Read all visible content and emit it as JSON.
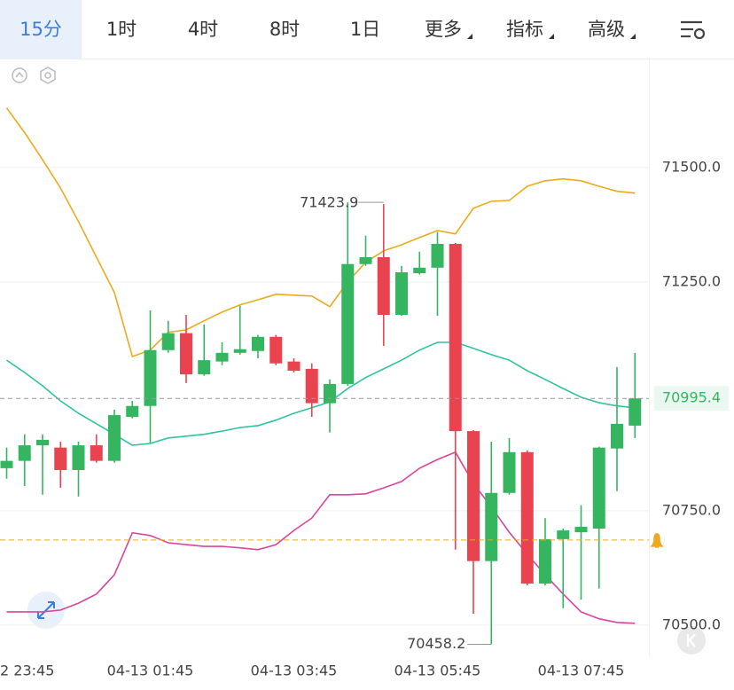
{
  "tabs": [
    "15分",
    "1时",
    "4时",
    "8时",
    "1日",
    "更多",
    "指标",
    "高级"
  ],
  "selected_tab": 0,
  "chart_data": {
    "type": "candlestick",
    "categories": [
      "2 23:45",
      null,
      null,
      null,
      null,
      null,
      null,
      null,
      "04-13 01:45",
      null,
      null,
      null,
      null,
      null,
      null,
      null,
      "04-13 03:45",
      null,
      null,
      null,
      null,
      null,
      null,
      null,
      "04-13 05:45",
      null,
      null,
      null,
      null,
      null,
      null,
      null,
      "04-13 07:45",
      null,
      null,
      null
    ],
    "open": [
      70843,
      70859,
      70893,
      70888,
      70839,
      70893,
      70859,
      70955,
      70979,
      71101,
      71138,
      71048,
      71076,
      71095,
      71099,
      71130,
      71076,
      71060,
      70985,
      71027,
      71289,
      71304,
      71178,
      71269,
      71281,
      71333,
      70924,
      70640,
      70789,
      70878,
      70591,
      70688,
      70703,
      70711,
      70886,
      70936
    ],
    "high": [
      70888,
      70917,
      70917,
      70901,
      70901,
      70917,
      70971,
      70990,
      71188,
      71165,
      71178,
      71157,
      71118,
      71198,
      71134,
      71134,
      71083,
      71072,
      71037,
      71423.9,
      71351,
      71420,
      71285,
      71316,
      71359,
      71335,
      70926,
      70901,
      70909,
      70882,
      70734,
      70711,
      70762,
      70890,
      71064,
      71095
    ],
    "low": [
      70820,
      70804,
      70785,
      70800,
      70781,
      70855,
      70855,
      70952,
      70897,
      71095,
      71029,
      71045,
      71068,
      71091,
      71083,
      71068,
      71052,
      70955,
      70921,
      71023,
      71285,
      71110,
      71176,
      71266,
      71176,
      70665,
      70525,
      70458.2,
      70785,
      70587,
      70587,
      70537,
      70556,
      70580,
      70793,
      70909
    ],
    "close": [
      70859,
      70893,
      70905,
      70839,
      70893,
      70859,
      70959,
      70979,
      71101,
      71138,
      71048,
      71079,
      71095,
      71103,
      71130,
      71072,
      71056,
      70985,
      71027,
      71289,
      71304,
      71178,
      71271,
      71281,
      71333,
      70924,
      70640,
      70789,
      70878,
      70591,
      70688,
      70707,
      70715,
      70888,
      70940,
      70995.4
    ],
    "up_color": "#35b560",
    "down_color": "#e8434f",
    "series": [
      {
        "color": "#e8ac1c",
        "values": [
          71630,
          71576,
          71517,
          71455,
          71382,
          71304,
          71227,
          71087,
          71101,
          71140,
          71145,
          71165,
          71184,
          71200,
          71211,
          71223,
          71221,
          71219,
          71196,
          71250,
          71293,
          71318,
          71331,
          71347,
          71362,
          71355,
          71411,
          71426,
          71428,
          71459,
          71471,
          71475,
          71471,
          71459,
          71448,
          71444
        ]
      },
      {
        "color": "#2ec4a0",
        "values": [
          71079,
          71052,
          71023,
          70990,
          70963,
          70940,
          70917,
          70893,
          70897,
          70909,
          70913,
          70917,
          70924,
          70932,
          70936,
          70948,
          70963,
          70975,
          70988,
          71017,
          71041,
          71060,
          71079,
          71101,
          71118,
          71118,
          71105,
          71091,
          71079,
          71056,
          71037,
          71017,
          70998,
          70986,
          70979,
          70975
        ]
      },
      {
        "color": "#d9449f",
        "values": [
          70529,
          70529,
          70529,
          70533,
          70548,
          70568,
          70610,
          70702,
          70696,
          70680,
          70676,
          70672,
          70672,
          70669,
          70665,
          70676,
          70707,
          70734,
          70785,
          70785,
          70787,
          70800,
          70814,
          70843,
          70862,
          70878,
          70810,
          70758,
          70703,
          70655,
          70610,
          70568,
          70529,
          70514,
          70506,
          70504
        ]
      }
    ],
    "ylim": [
      70432,
      71738
    ],
    "yticks": [
      {
        "value": 70500,
        "label": "70500.0"
      },
      {
        "value": 70750,
        "label": "70750.0"
      },
      {
        "value": 71250,
        "label": "71250.0"
      },
      {
        "value": 71500,
        "label": "71500.0"
      }
    ],
    "grid": true,
    "last_price": 70995.4,
    "alert_price": 70686
  }
}
